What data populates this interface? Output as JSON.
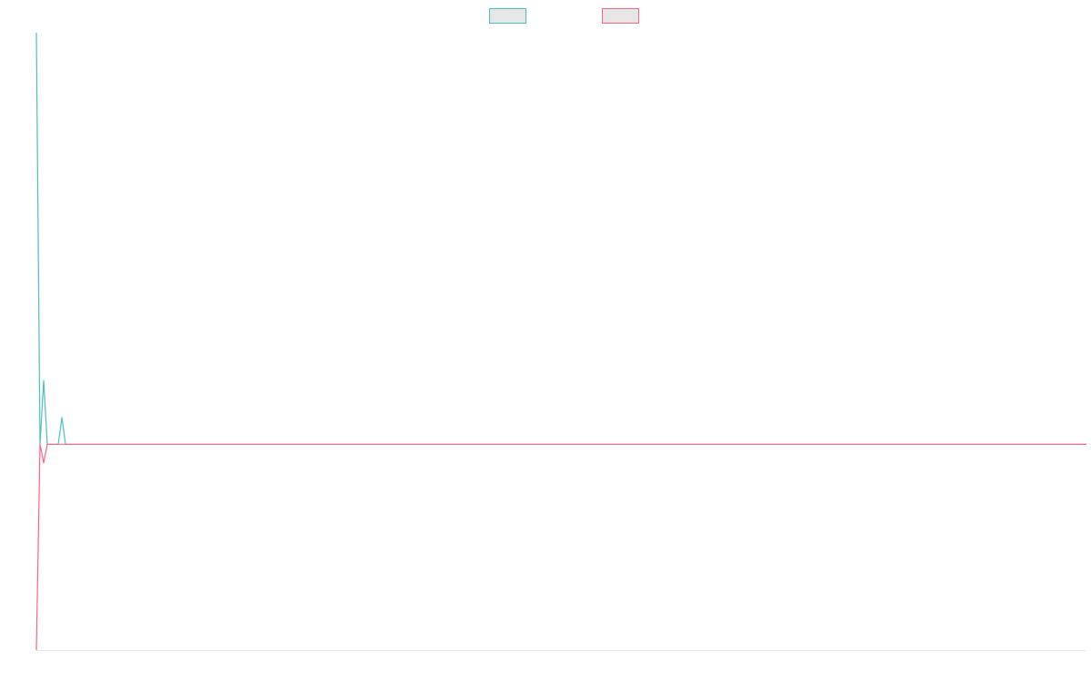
{
  "chart_data": {
    "type": "line",
    "x": [
      0,
      1,
      2,
      3,
      6,
      7,
      8,
      288
    ],
    "xlim": [
      0,
      288
    ],
    "ylim": [
      -1,
      2
    ],
    "grid": false,
    "legend": "top",
    "series": [
      {
        "color": "#4bc0c0",
        "values": [
          2,
          0,
          0.31,
          0,
          0,
          0.13,
          0,
          0
        ]
      },
      {
        "color": "#ff6384",
        "values": [
          -1,
          0,
          -0.09,
          0,
          0,
          0,
          0,
          0
        ]
      }
    ]
  }
}
